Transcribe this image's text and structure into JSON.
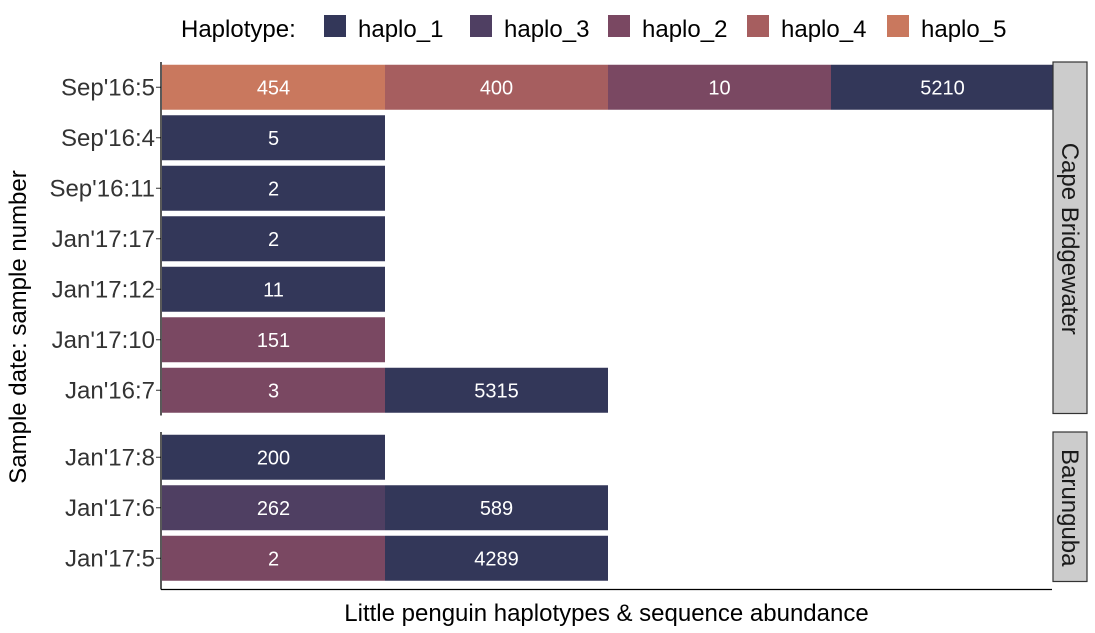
{
  "chart_data": {
    "type": "bar",
    "orientation": "horizontal",
    "stacking": "equal-width segments per haplotype",
    "xlabel": "Little penguin haplotypes & sequence abundance",
    "ylabel": "Sample date: sample number",
    "legend": {
      "title": "Haplotype:",
      "position": "top",
      "items": [
        {
          "name": "haplo_1",
          "color": "#333759"
        },
        {
          "name": "haplo_3",
          "color": "#4f3f62"
        },
        {
          "name": "haplo_2",
          "color": "#7a4862"
        },
        {
          "name": "haplo_4",
          "color": "#a65e5f"
        },
        {
          "name": "haplo_5",
          "color": "#c9785e"
        }
      ]
    },
    "facets": [
      {
        "name": "Cape Bridgewater",
        "rows": [
          {
            "label": "Sep'16:5",
            "segments": [
              {
                "haplotype": "haplo_5",
                "value": 454
              },
              {
                "haplotype": "haplo_4",
                "value": 400
              },
              {
                "haplotype": "haplo_2",
                "value": 10
              },
              {
                "haplotype": "haplo_1",
                "value": 5210
              }
            ]
          },
          {
            "label": "Sep'16:4",
            "segments": [
              {
                "haplotype": "haplo_1",
                "value": 5
              }
            ]
          },
          {
            "label": "Sep'16:11",
            "segments": [
              {
                "haplotype": "haplo_1",
                "value": 2
              }
            ]
          },
          {
            "label": "Jan'17:17",
            "segments": [
              {
                "haplotype": "haplo_1",
                "value": 2
              }
            ]
          },
          {
            "label": "Jan'17:12",
            "segments": [
              {
                "haplotype": "haplo_1",
                "value": 11
              }
            ]
          },
          {
            "label": "Jan'17:10",
            "segments": [
              {
                "haplotype": "haplo_2",
                "value": 151
              }
            ]
          },
          {
            "label": "Jan'16:7",
            "segments": [
              {
                "haplotype": "haplo_2",
                "value": 3
              },
              {
                "haplotype": "haplo_1",
                "value": 5315
              }
            ]
          }
        ]
      },
      {
        "name": "Barunguba",
        "rows": [
          {
            "label": "Jan'17:8",
            "segments": [
              {
                "haplotype": "haplo_1",
                "value": 200
              }
            ]
          },
          {
            "label": "Jan'17:6",
            "segments": [
              {
                "haplotype": "haplo_3",
                "value": 262
              },
              {
                "haplotype": "haplo_1",
                "value": 589
              }
            ]
          },
          {
            "label": "Jan'17:5",
            "segments": [
              {
                "haplotype": "haplo_2",
                "value": 2
              },
              {
                "haplotype": "haplo_1",
                "value": 4289
              }
            ]
          }
        ]
      }
    ],
    "grid": false,
    "strip_color": "#cccccc"
  }
}
